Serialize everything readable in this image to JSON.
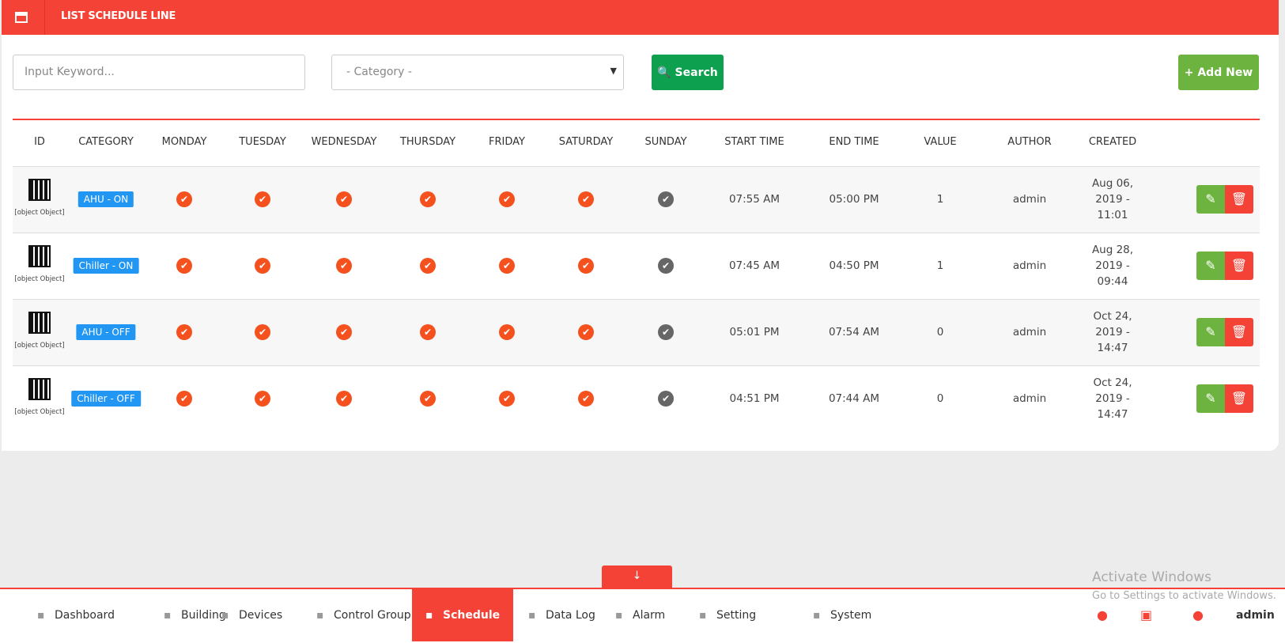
{
  "header": {
    "title": "LIST SCHEDULE LINE"
  },
  "filters": {
    "keyword_placeholder": "Input Keyword...",
    "category_placeholder": "- Category -",
    "search_button": "Search",
    "add_button": "Add New"
  },
  "table": {
    "columns": [
      "ID",
      "CATEGORY",
      "MONDAY",
      "TUESDAY",
      "WEDNESDAY",
      "THURSDAY",
      "FRIDAY",
      "SATURDAY",
      "SUNDAY",
      "START TIME",
      "END TIME",
      "VALUE",
      "AUTHOR",
      "CREATED"
    ],
    "rows": [
      {
        "id": "[object Object]",
        "category": "AHU - ON",
        "start": "07:55 AM",
        "end": "05:00 PM",
        "value": 1,
        "author": "admin",
        "created": "Aug 06, 2019 - 11:01"
      },
      {
        "id": "[object Object]",
        "category": "Chiller - ON",
        "start": "07:45 AM",
        "end": "04:50 PM",
        "value": 1,
        "author": "admin",
        "created": "Aug 28, 2019 - 09:44"
      },
      {
        "id": "[object Object]",
        "category": "AHU - OFF",
        "start": "05:01 PM",
        "end": "07:54 AM",
        "value": 0,
        "author": "admin",
        "created": "Oct 24, 2019 - 14:47"
      },
      {
        "id": "[object Object]",
        "category": "Chiller - OFF",
        "start": "04:51 PM",
        "end": "07:44 AM",
        "value": 0,
        "author": "admin",
        "created": "Oct 24, 2019 - 14:47"
      }
    ]
  },
  "nav": {
    "items": [
      "Dashboard",
      "Building",
      "Devices",
      "Control Group",
      "Schedule",
      "Data Log",
      "Alarm",
      "Setting",
      "System"
    ],
    "user": "admin"
  },
  "watermark": {
    "title": "Activate Windows",
    "subtitle": "Go to Settings to activate Windows."
  }
}
